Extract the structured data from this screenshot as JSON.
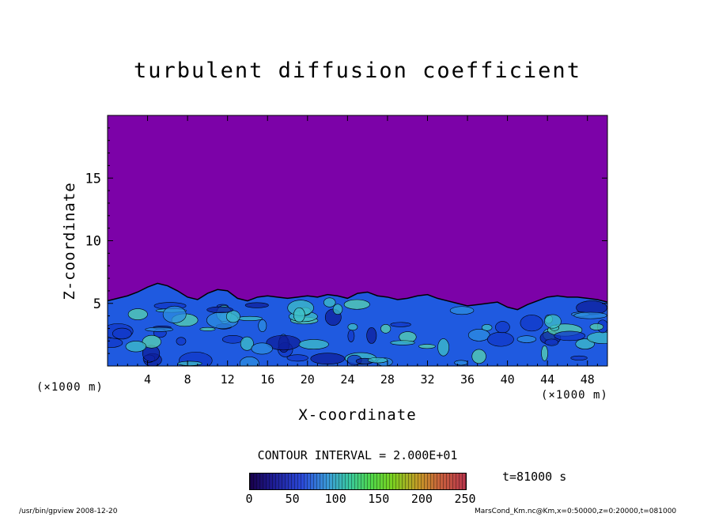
{
  "chart_data": {
    "type": "heatmap",
    "title": "turbulent diffusion coefficient",
    "xlabel": "X-coordinate",
    "ylabel": "Z-coordinate",
    "x_unit": "(×1000 m)",
    "xlim": [
      0,
      50
    ],
    "ylim": [
      0,
      20
    ],
    "x_ticks": [
      "4",
      "8",
      "12",
      "16",
      "20",
      "24",
      "28",
      "32",
      "36",
      "40",
      "44",
      "48"
    ],
    "y_ticks": [
      "5",
      "10",
      "15"
    ],
    "x_tick_values": [
      4,
      8,
      12,
      16,
      20,
      24,
      28,
      32,
      36,
      40,
      44,
      48
    ],
    "y_tick_values": [
      5,
      10,
      15
    ],
    "boundary_layer_top": {
      "x": [
        0,
        1,
        2,
        3,
        4,
        5,
        6,
        7,
        8,
        9,
        10,
        11,
        12,
        13,
        14,
        15,
        16,
        17,
        18,
        19,
        20,
        21,
        22,
        23,
        24,
        25,
        26,
        27,
        28,
        29,
        30,
        31,
        32,
        33,
        34,
        35,
        36,
        37,
        38,
        39,
        40,
        41,
        42,
        43,
        44,
        45,
        46,
        47,
        48,
        49,
        50
      ],
      "z": [
        5.2,
        5.4,
        5.6,
        5.9,
        6.3,
        6.6,
        6.4,
        6.0,
        5.5,
        5.3,
        5.8,
        6.1,
        6.0,
        5.4,
        5.2,
        5.5,
        5.6,
        5.5,
        5.4,
        5.5,
        5.6,
        5.5,
        5.7,
        5.6,
        5.4,
        5.8,
        5.9,
        5.6,
        5.5,
        5.3,
        5.4,
        5.6,
        5.7,
        5.4,
        5.2,
        5.0,
        4.8,
        4.9,
        5.0,
        5.1,
        4.7,
        4.5,
        4.9,
        5.2,
        5.5,
        5.6,
        5.5,
        5.5,
        5.4,
        5.3,
        5.1
      ]
    },
    "colorbar": {
      "label": "CONTOUR INTERVAL = 2.000E+01",
      "ticks": [
        "0",
        "50",
        "100",
        "150",
        "200",
        "250"
      ],
      "range": [
        0,
        250
      ],
      "colors": [
        "#18004a",
        "#2a48d8",
        "#3a9ad8",
        "#4fd64a",
        "#c49a26",
        "#b8364c"
      ]
    },
    "background_color": "#7c02a8",
    "time_label": "t=81000 s"
  },
  "footer": {
    "left": "/usr/bin/gpview  2008-12-20",
    "right": "MarsCond_Km.nc@Km,x=0:50000,z=0:20000,t=081000"
  }
}
